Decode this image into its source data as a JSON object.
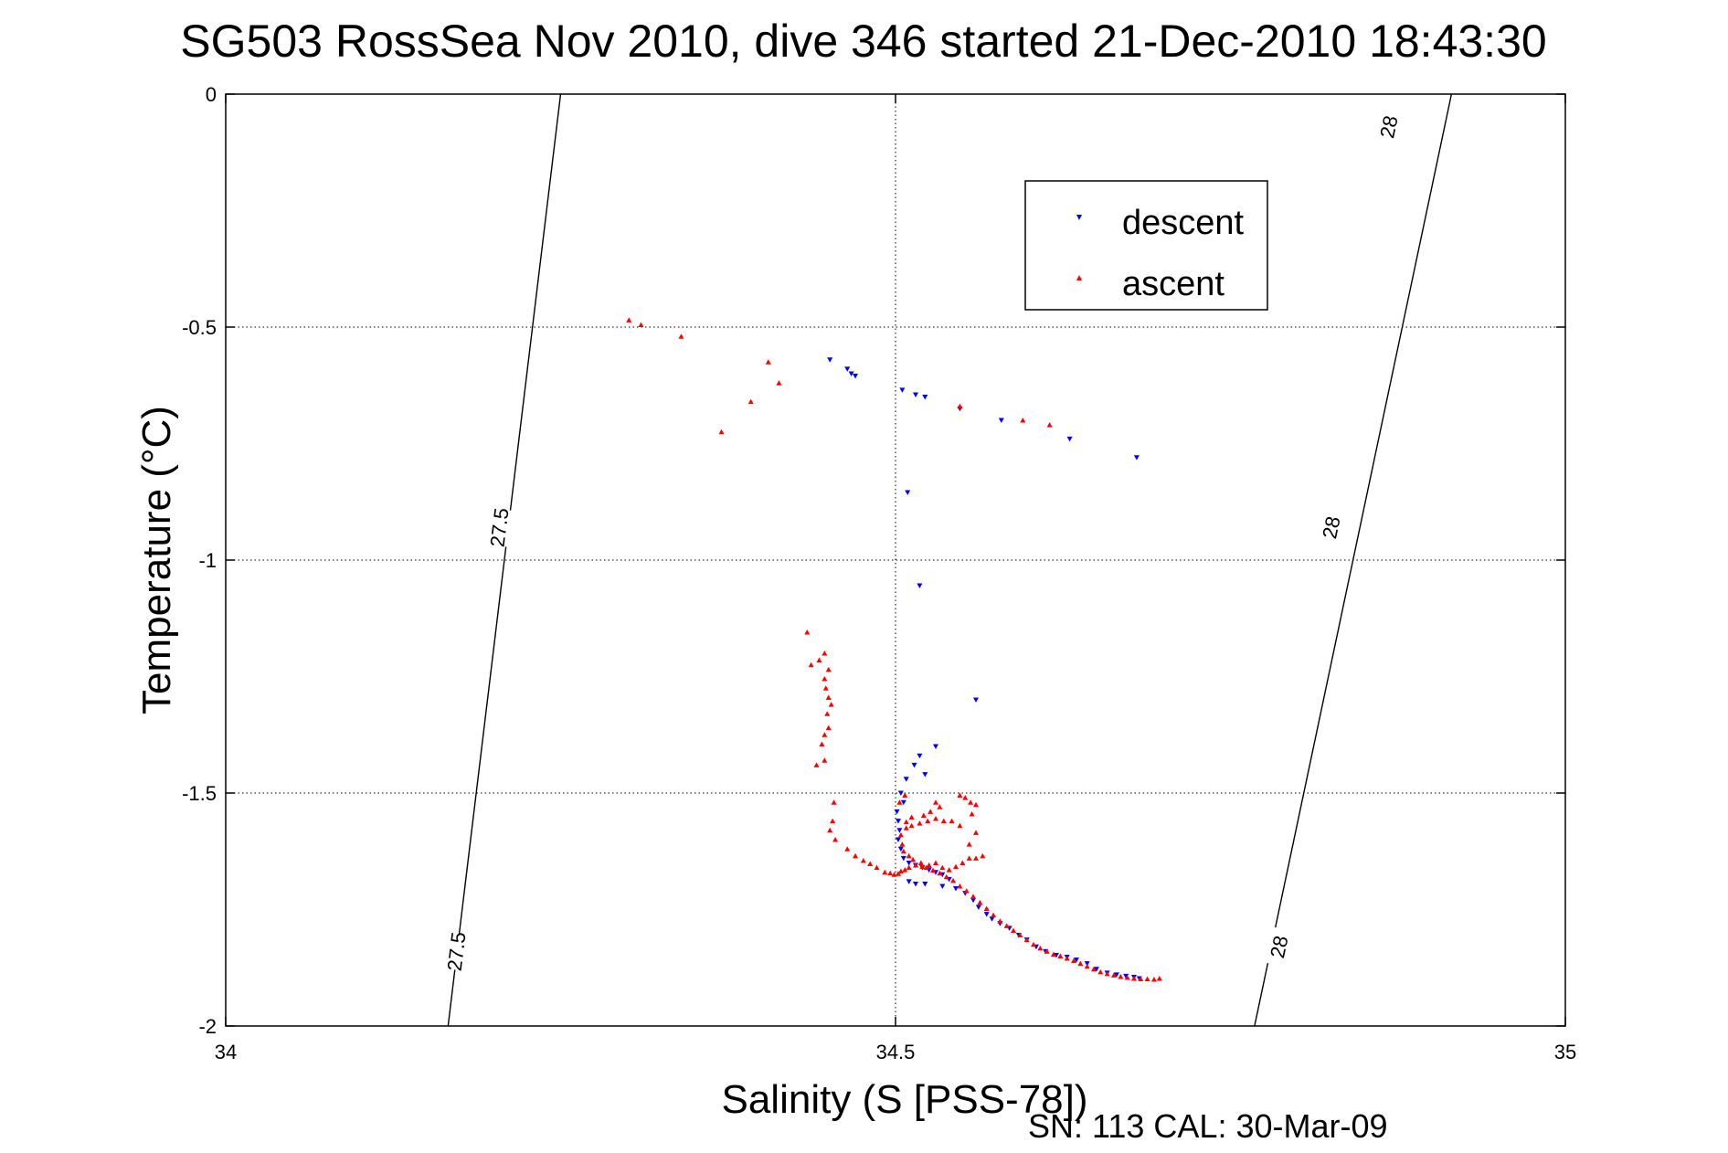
{
  "chart_data": {
    "type": "scatter",
    "title": "SG503 RossSea Nov 2010, dive 346 started 21-Dec-2010 18:43:30",
    "xlabel": "Salinity (S [PSS-78])",
    "ylabel": "Temperature (°C)",
    "xlim": [
      34,
      35
    ],
    "ylim": [
      -2,
      0
    ],
    "xticks": [
      34,
      34.5,
      35
    ],
    "yticks": [
      0,
      -0.5,
      -1,
      -1.5,
      -2
    ],
    "xtick_labels": [
      "34",
      "34.5",
      "35"
    ],
    "ytick_labels": [
      "0",
      "-0.5",
      "-1",
      "-1.5",
      "-2"
    ],
    "grid": true,
    "legend_position": "top-right",
    "density_contours": [
      {
        "label": "27.5",
        "points": [
          [
            34.166,
            -2
          ],
          [
            34.25,
            0
          ]
        ],
        "label_positions": [
          [
            34.172,
            -1.84
          ],
          [
            34.204,
            -0.93
          ]
        ]
      },
      {
        "label": "28",
        "points": [
          [
            34.768,
            -2
          ],
          [
            34.915,
            0
          ]
        ],
        "label_positions": [
          [
            34.786,
            -1.83
          ],
          [
            34.825,
            -0.93
          ],
          [
            34.868,
            -0.07
          ]
        ]
      }
    ],
    "series": [
      {
        "name": "descent",
        "color": "#0000ff",
        "marker": "triangle-down",
        "points": [
          [
            34.451,
            -0.57
          ],
          [
            34.464,
            -0.59
          ],
          [
            34.467,
            -0.6
          ],
          [
            34.47,
            -0.605
          ],
          [
            34.505,
            -0.635
          ],
          [
            34.515,
            -0.645
          ],
          [
            34.522,
            -0.65
          ],
          [
            34.548,
            -0.675
          ],
          [
            34.579,
            -0.7
          ],
          [
            34.63,
            -0.74
          ],
          [
            34.68,
            -0.78
          ],
          [
            34.509,
            -0.855
          ],
          [
            34.518,
            -1.055
          ],
          [
            34.56,
            -1.3
          ],
          [
            34.53,
            -1.4
          ],
          [
            34.518,
            -1.42
          ],
          [
            34.514,
            -1.44
          ],
          [
            34.522,
            -1.46
          ],
          [
            34.508,
            -1.47
          ],
          [
            34.504,
            -1.5
          ],
          [
            34.506,
            -1.52
          ],
          [
            34.501,
            -1.54
          ],
          [
            34.502,
            -1.56
          ],
          [
            34.503,
            -1.58
          ],
          [
            34.502,
            -1.6
          ],
          [
            34.504,
            -1.62
          ],
          [
            34.506,
            -1.64
          ],
          [
            34.51,
            -1.65
          ],
          [
            34.515,
            -1.655
          ],
          [
            34.52,
            -1.66
          ],
          [
            34.525,
            -1.665
          ],
          [
            34.53,
            -1.67
          ],
          [
            34.535,
            -1.675
          ],
          [
            34.54,
            -1.685
          ],
          [
            34.51,
            -1.69
          ],
          [
            34.515,
            -1.695
          ],
          [
            34.522,
            -1.695
          ],
          [
            34.535,
            -1.7
          ],
          [
            34.545,
            -1.705
          ],
          [
            34.552,
            -1.715
          ],
          [
            34.558,
            -1.73
          ],
          [
            34.562,
            -1.745
          ],
          [
            34.568,
            -1.76
          ],
          [
            34.572,
            -1.77
          ],
          [
            34.578,
            -1.78
          ],
          [
            34.585,
            -1.79
          ],
          [
            34.592,
            -1.805
          ],
          [
            34.598,
            -1.815
          ],
          [
            34.605,
            -1.83
          ],
          [
            34.612,
            -1.84
          ],
          [
            34.62,
            -1.848
          ],
          [
            34.628,
            -1.852
          ],
          [
            34.635,
            -1.858
          ],
          [
            34.643,
            -1.866
          ],
          [
            34.65,
            -1.878
          ],
          [
            34.658,
            -1.886
          ],
          [
            34.665,
            -1.89
          ],
          [
            34.672,
            -1.893
          ],
          [
            34.678,
            -1.895
          ],
          [
            34.682,
            -1.898
          ]
        ]
      },
      {
        "name": "ascent",
        "color": "#ff0000",
        "marker": "triangle-up",
        "points": [
          [
            34.301,
            -0.485
          ],
          [
            34.31,
            -0.495
          ],
          [
            34.34,
            -0.52
          ],
          [
            34.405,
            -0.575
          ],
          [
            34.413,
            -0.62
          ],
          [
            34.392,
            -0.66
          ],
          [
            34.37,
            -0.725
          ],
          [
            34.548,
            -0.67
          ],
          [
            34.595,
            -0.7
          ],
          [
            34.615,
            -0.71
          ],
          [
            34.434,
            -1.155
          ],
          [
            34.437,
            -1.225
          ],
          [
            34.443,
            -1.215
          ],
          [
            34.447,
            -1.2
          ],
          [
            34.45,
            -1.235
          ],
          [
            34.447,
            -1.255
          ],
          [
            34.448,
            -1.275
          ],
          [
            34.45,
            -1.295
          ],
          [
            34.452,
            -1.31
          ],
          [
            34.449,
            -1.33
          ],
          [
            34.45,
            -1.36
          ],
          [
            34.447,
            -1.375
          ],
          [
            34.445,
            -1.395
          ],
          [
            34.447,
            -1.43
          ],
          [
            34.441,
            -1.44
          ],
          [
            34.454,
            -1.52
          ],
          [
            34.453,
            -1.56
          ],
          [
            34.451,
            -1.58
          ],
          [
            34.455,
            -1.6
          ],
          [
            34.464,
            -1.62
          ],
          [
            34.47,
            -1.635
          ],
          [
            34.476,
            -1.645
          ],
          [
            34.481,
            -1.652
          ],
          [
            34.486,
            -1.66
          ],
          [
            34.492,
            -1.67
          ],
          [
            34.496,
            -1.672
          ],
          [
            34.499,
            -1.675
          ],
          [
            34.502,
            -1.673
          ],
          [
            34.504,
            -1.668
          ],
          [
            34.507,
            -1.665
          ],
          [
            34.51,
            -1.66
          ],
          [
            34.515,
            -1.655
          ],
          [
            34.52,
            -1.658
          ],
          [
            34.525,
            -1.655
          ],
          [
            34.53,
            -1.65
          ],
          [
            34.535,
            -1.66
          ],
          [
            34.54,
            -1.665
          ],
          [
            34.545,
            -1.658
          ],
          [
            34.55,
            -1.65
          ],
          [
            34.555,
            -1.64
          ],
          [
            34.56,
            -1.64
          ],
          [
            34.565,
            -1.635
          ],
          [
            34.555,
            -1.61
          ],
          [
            34.56,
            -1.585
          ],
          [
            34.548,
            -1.57
          ],
          [
            34.542,
            -1.56
          ],
          [
            34.536,
            -1.56
          ],
          [
            34.53,
            -1.555
          ],
          [
            34.524,
            -1.56
          ],
          [
            34.518,
            -1.565
          ],
          [
            34.512,
            -1.57
          ],
          [
            34.508,
            -1.575
          ],
          [
            34.503,
            -1.52
          ],
          [
            34.507,
            -1.505
          ],
          [
            34.548,
            -1.505
          ],
          [
            34.552,
            -1.51
          ],
          [
            34.556,
            -1.52
          ],
          [
            34.56,
            -1.525
          ],
          [
            34.557,
            -1.545
          ],
          [
            34.53,
            -1.52
          ],
          [
            34.533,
            -1.53
          ],
          [
            34.526,
            -1.54
          ],
          [
            34.521,
            -1.548
          ],
          [
            34.512,
            -1.552
          ],
          [
            34.508,
            -1.562
          ],
          [
            34.504,
            -1.59
          ],
          [
            34.505,
            -1.61
          ],
          [
            34.506,
            -1.625
          ],
          [
            34.51,
            -1.635
          ],
          [
            34.513,
            -1.643
          ],
          [
            34.519,
            -1.65
          ],
          [
            34.523,
            -1.66
          ],
          [
            34.528,
            -1.666
          ],
          [
            34.533,
            -1.672
          ],
          [
            34.538,
            -1.68
          ],
          [
            34.543,
            -1.688
          ],
          [
            34.548,
            -1.7
          ],
          [
            34.553,
            -1.71
          ],
          [
            34.558,
            -1.722
          ],
          [
            34.563,
            -1.735
          ],
          [
            34.568,
            -1.748
          ],
          [
            34.573,
            -1.762
          ],
          [
            34.578,
            -1.775
          ],
          [
            34.583,
            -1.785
          ],
          [
            34.588,
            -1.795
          ],
          [
            34.593,
            -1.805
          ],
          [
            34.598,
            -1.815
          ],
          [
            34.603,
            -1.825
          ],
          [
            34.608,
            -1.833
          ],
          [
            34.613,
            -1.84
          ],
          [
            34.618,
            -1.846
          ],
          [
            34.623,
            -1.85
          ],
          [
            34.628,
            -1.855
          ],
          [
            34.633,
            -1.86
          ],
          [
            34.638,
            -1.866
          ],
          [
            34.643,
            -1.872
          ],
          [
            34.648,
            -1.878
          ],
          [
            34.653,
            -1.884
          ],
          [
            34.658,
            -1.888
          ],
          [
            34.663,
            -1.891
          ],
          [
            34.668,
            -1.894
          ],
          [
            34.673,
            -1.896
          ],
          [
            34.678,
            -1.898
          ],
          [
            34.683,
            -1.899
          ],
          [
            34.688,
            -1.899
          ],
          [
            34.693,
            -1.9
          ],
          [
            34.697,
            -1.898
          ]
        ]
      }
    ]
  },
  "footer": {
    "serial_text": "SN: 113  CAL: 30-Mar-09"
  }
}
